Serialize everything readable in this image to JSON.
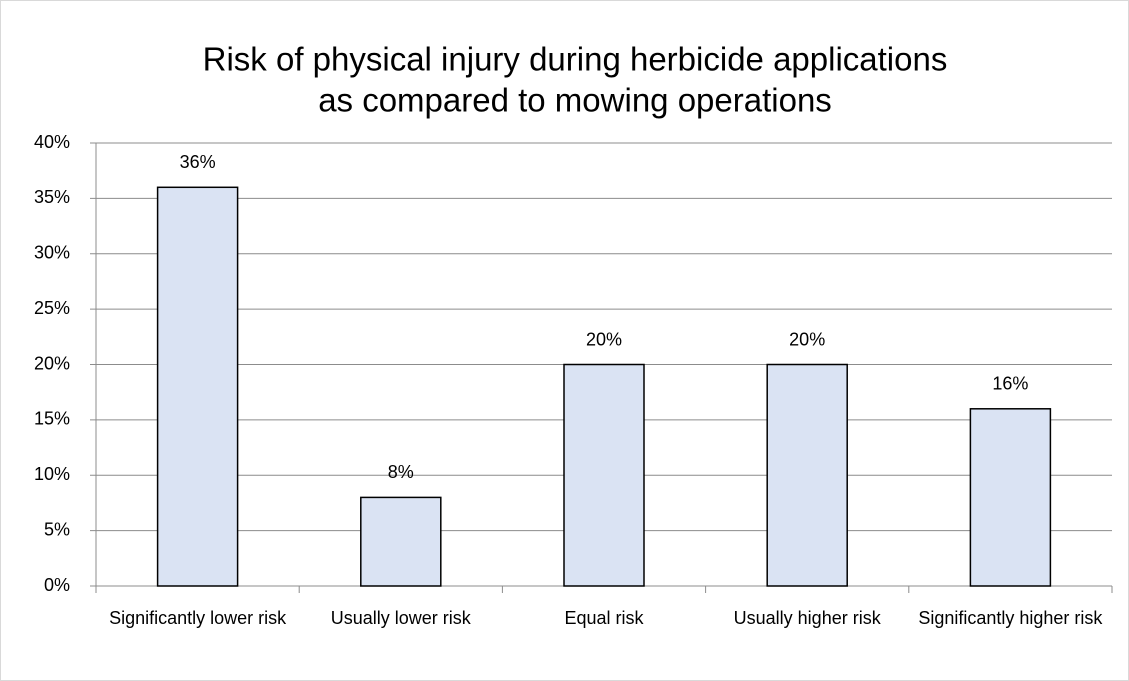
{
  "chart_data": {
    "type": "bar",
    "title": [
      "Risk of physical injury during herbicide applications",
      "as compared to mowing operations"
    ],
    "categories": [
      "Significantly lower risk",
      "Usually lower risk",
      "Equal risk",
      "Usually higher risk",
      "Significantly higher risk"
    ],
    "values": [
      36,
      8,
      20,
      20,
      16
    ],
    "value_labels": [
      "36%",
      "8%",
      "20%",
      "20%",
      "16%"
    ],
    "color": "#dae3f3",
    "ylim": [
      0,
      40
    ],
    "yticks": [
      {
        "value": 0,
        "label": "0%"
      },
      {
        "value": 5,
        "label": "5%"
      },
      {
        "value": 10,
        "label": "10%"
      },
      {
        "value": 15,
        "label": "15%"
      },
      {
        "value": 20,
        "label": "20%"
      },
      {
        "value": 25,
        "label": "25%"
      },
      {
        "value": 30,
        "label": "30%"
      },
      {
        "value": 35,
        "label": "35%"
      },
      {
        "value": 40,
        "label": "40%"
      }
    ],
    "grid": true
  }
}
